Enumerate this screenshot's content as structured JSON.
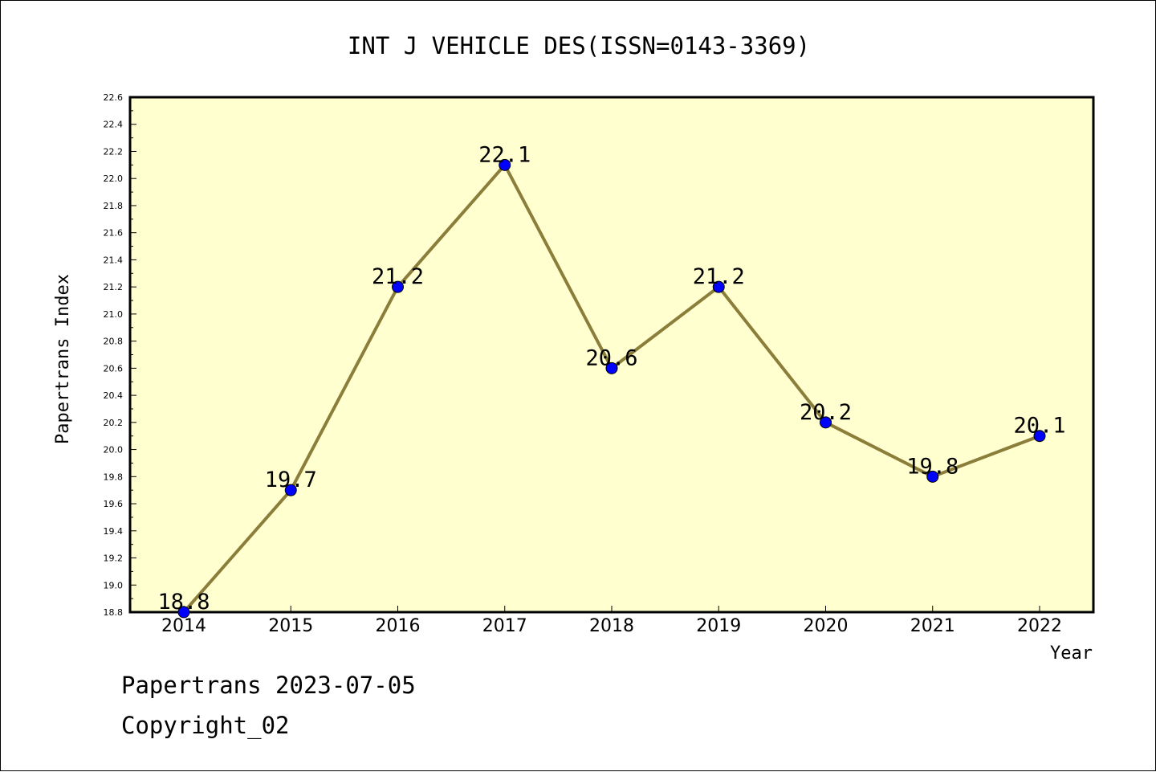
{
  "chart_data": {
    "type": "line",
    "title": "INT J VEHICLE DES(ISSN=0143-3369)",
    "xlabel": "Year",
    "ylabel": "Papertrans Index",
    "categories": [
      "2014",
      "2015",
      "2016",
      "2017",
      "2018",
      "2019",
      "2020",
      "2021",
      "2022"
    ],
    "series": [
      {
        "values": [
          18.8,
          19.7,
          21.2,
          22.1,
          20.6,
          21.2,
          20.2,
          19.8,
          20.1
        ]
      }
    ],
    "data_labels": [
      "18.8",
      "19.7",
      "21.2",
      "22.1",
      "20.6",
      "21.2",
      "20.2",
      "19.8",
      "20.1"
    ],
    "ylim": [
      18.8,
      22.6
    ],
    "yticks": [
      "18.8",
      "19.0",
      "19.2",
      "19.4",
      "19.6",
      "19.8",
      "20.0",
      "20.2",
      "20.4",
      "20.6",
      "20.8",
      "21.0",
      "21.2",
      "21.4",
      "21.6",
      "21.8",
      "22.0",
      "22.2",
      "22.4",
      "22.6"
    ],
    "grid": false,
    "colors": {
      "plot_background": "#ffffd0",
      "line": "#8b7d3a",
      "marker": "#0000ff"
    }
  },
  "footer": {
    "line1": "Papertrans 2023-07-05",
    "line2": "Copyright_02"
  }
}
